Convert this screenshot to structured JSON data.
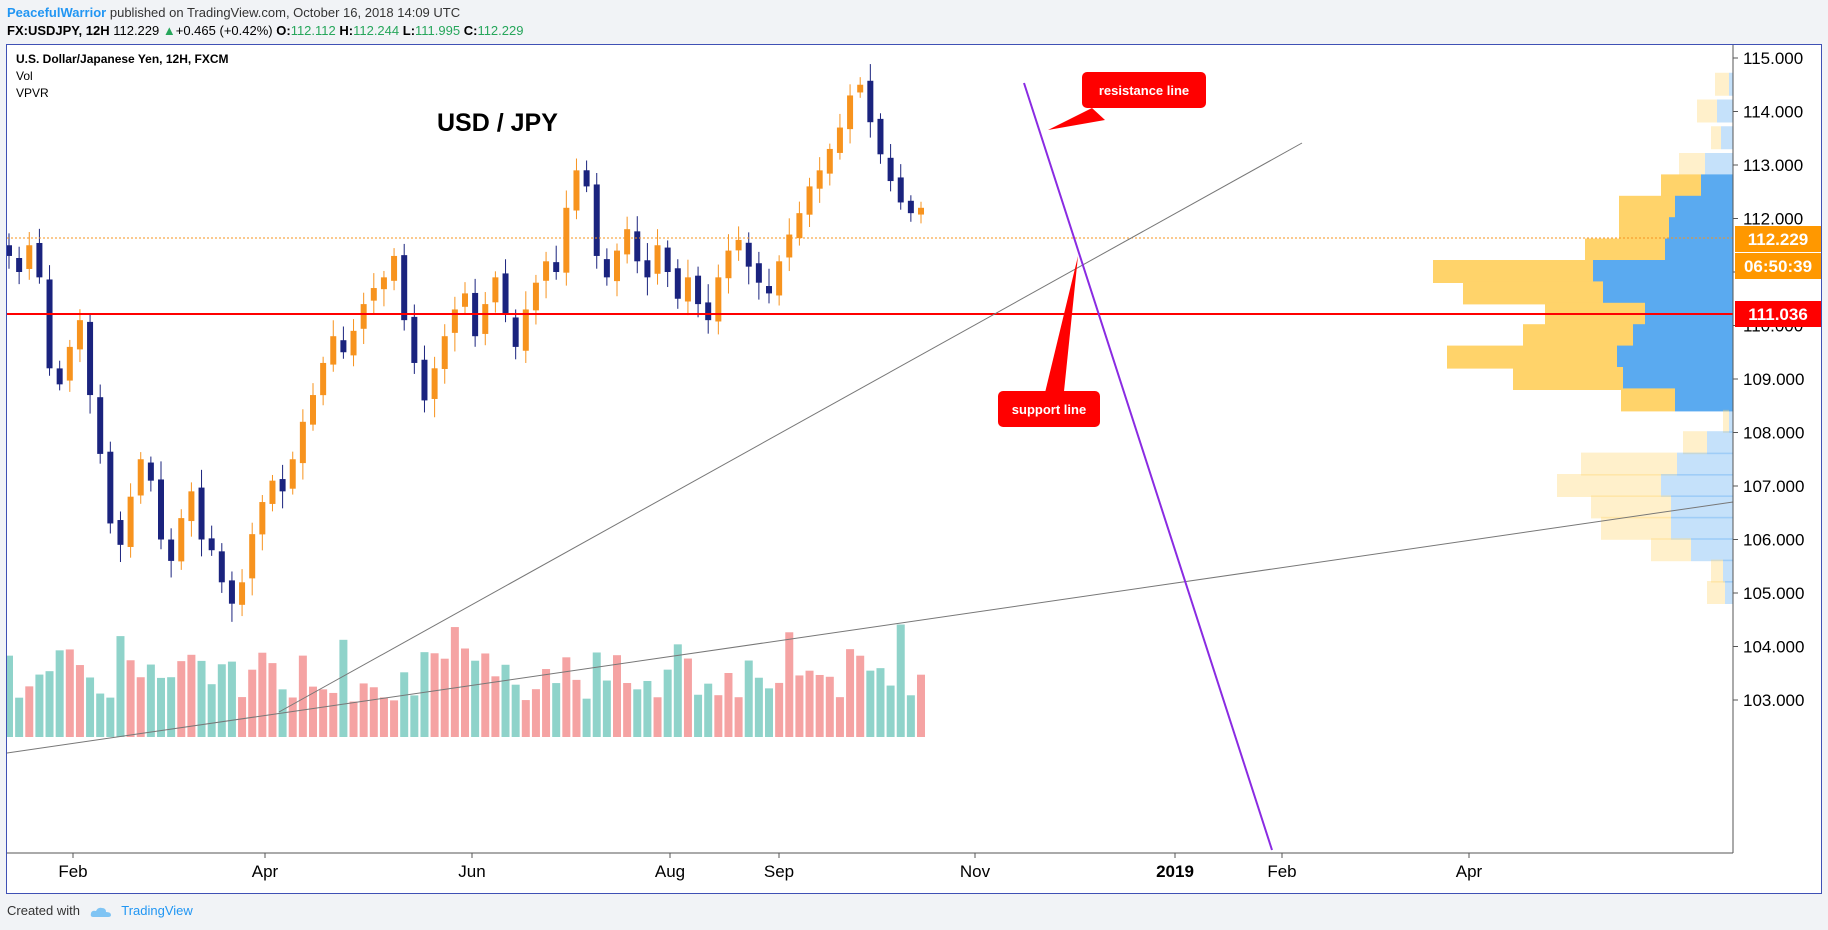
{
  "header": {
    "author": "PeacefulWarrior",
    "published": "published on TradingView.com, October 16, 2018 14:09 UTC",
    "symbol": "FX:USDJPY, 12H",
    "last": "112.229",
    "change": "+0.465 (+0.42%)",
    "o_label": "O:",
    "o_value": "112.112",
    "h_label": "H:",
    "h_value": "112.244",
    "l_label": "L:",
    "l_value": "111.995",
    "c_label": "C:",
    "c_value": "112.229"
  },
  "legend": {
    "instrument": "U.S. Dollar/Japanese Yen, 12H, FXCM",
    "vol": "Vol",
    "vpvr": "VPVR"
  },
  "footer": {
    "created": "Created with",
    "brand": "TradingView"
  },
  "colors": {
    "up_candle": "#f7931e",
    "down_candle": "#1a237e",
    "vol_up": "#f5a3a3",
    "vol_down": "#8fd3ca",
    "support_red": "#ff0000",
    "resistance": "#8a2be2",
    "price_tag": "#ff9800",
    "vp_up": "#ffd36a",
    "vp_down": "#5aaaf0",
    "accent": "#2196f3"
  },
  "chart_data": {
    "type": "candlestick",
    "title": "USD / JPY",
    "x_ticks": [
      "Feb",
      "Apr",
      "Jun",
      "Aug",
      "Sep",
      "Nov",
      "2019",
      "Feb",
      "Apr"
    ],
    "y_ticks": [
      "115.000",
      "114.000",
      "113.000",
      "112.000",
      "111.000",
      "110.000",
      "109.000",
      "108.000",
      "107.000",
      "106.000",
      "105.000",
      "104.000",
      "103.000"
    ],
    "ylim": [
      102.4,
      115.3
    ],
    "last_price": 112.229,
    "last_price_label": "112.229",
    "countdown": "06:50:39",
    "horizontal_level": 111.036,
    "horizontal_level_label": "111.036",
    "annotations": [
      {
        "text": "resistance line"
      },
      {
        "text": "support line"
      }
    ],
    "closes": [
      111.3,
      111.0,
      111.5,
      110.9,
      109.2,
      108.9,
      109.6,
      110.1,
      108.7,
      107.6,
      106.3,
      105.9,
      106.8,
      107.5,
      107.1,
      106.0,
      105.6,
      106.4,
      106.9,
      106.0,
      105.8,
      105.2,
      104.8,
      105.2,
      106.1,
      106.7,
      107.1,
      106.9,
      107.5,
      108.2,
      108.7,
      109.3,
      109.8,
      109.5,
      109.9,
      110.4,
      110.7,
      110.9,
      111.3,
      110.1,
      109.3,
      108.6,
      109.2,
      109.8,
      110.3,
      110.6,
      109.8,
      110.4,
      110.9,
      110.2,
      109.6,
      110.3,
      110.8,
      111.2,
      111.0,
      112.2,
      112.9,
      112.6,
      111.3,
      110.9,
      111.4,
      111.8,
      111.2,
      110.9,
      111.5,
      111.0,
      110.5,
      110.9,
      110.4,
      110.1,
      110.9,
      111.4,
      111.6,
      111.1,
      110.8,
      110.6,
      111.2,
      111.7,
      112.1,
      112.6,
      112.9,
      113.3,
      113.7,
      114.3,
      114.5,
      113.8,
      113.2,
      112.7,
      112.3,
      112.1,
      112.2
    ]
  }
}
